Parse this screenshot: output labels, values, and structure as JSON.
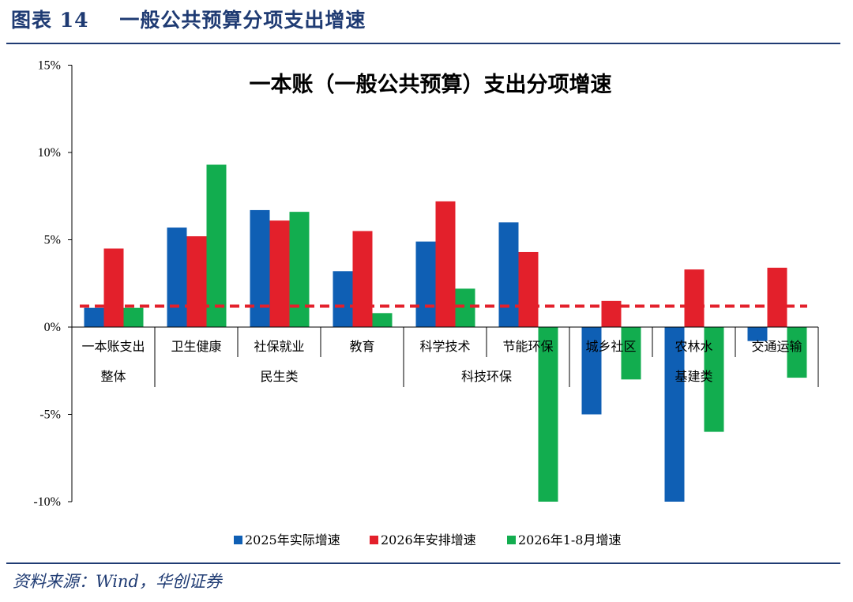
{
  "header": {
    "figure_label": "图表 14",
    "figure_title": "一般公共预算分项支出增速"
  },
  "footer": {
    "source": "资料来源：Wind，华创证券"
  },
  "chart_data": {
    "type": "bar",
    "title": "一本账（一般公共预算）支出分项增速",
    "xlabel": "",
    "ylabel": "",
    "ylim": [
      -10,
      15
    ],
    "y_ticks": [
      "15%",
      "10%",
      "5%",
      "0%",
      "-5%",
      "-10%"
    ],
    "y_tick_values": [
      15,
      10,
      5,
      0,
      -5,
      -10
    ],
    "grid": false,
    "legend_position": "bottom",
    "categories": [
      "一本账支出",
      "卫生健康",
      "社保就业",
      "教育",
      "科学技术",
      "节能环保",
      "城乡社区",
      "农林水",
      "交通运输"
    ],
    "groups": [
      {
        "label": "整体",
        "from": 0,
        "to": 0
      },
      {
        "label": "民生类",
        "from": 1,
        "to": 3
      },
      {
        "label": "科技环保",
        "from": 4,
        "to": 5
      },
      {
        "label": "基建类",
        "from": 6,
        "to": 8
      }
    ],
    "series": [
      {
        "name": "2025年实际增速",
        "color": "#0f5fb4",
        "values": [
          1.1,
          5.7,
          6.7,
          3.2,
          4.9,
          6.0,
          -5.0,
          -10.0,
          -0.8
        ]
      },
      {
        "name": "2026年安排增速",
        "color": "#e3202b",
        "values": [
          4.5,
          5.2,
          6.1,
          5.5,
          7.2,
          4.3,
          1.5,
          3.3,
          3.4
        ]
      },
      {
        "name": "2026年1-8月增速",
        "color": "#12ad4f",
        "values": [
          1.1,
          9.3,
          6.6,
          0.8,
          2.2,
          -10.0,
          -3.0,
          -6.0,
          -2.9
        ]
      }
    ],
    "reference_line": {
      "value": 1.2,
      "color": "#e3202b",
      "style": "dashed"
    }
  }
}
